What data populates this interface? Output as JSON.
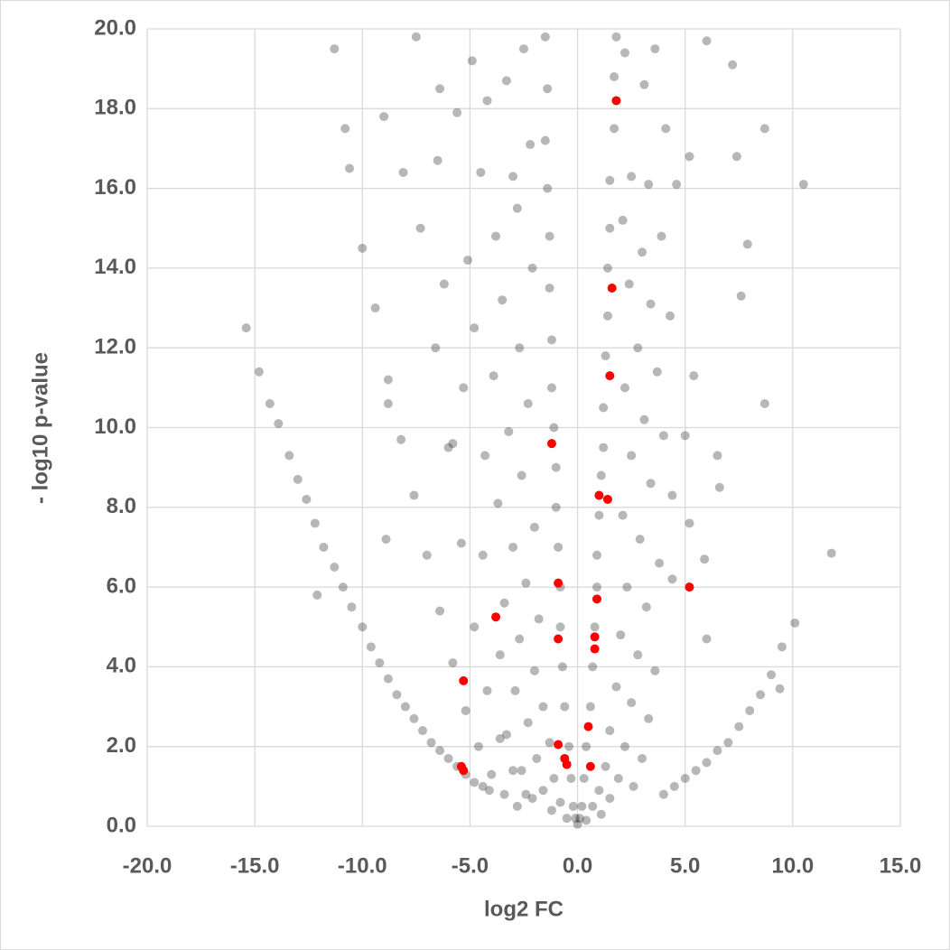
{
  "chart_data": {
    "type": "scatter",
    "xlabel": "log2 FC",
    "ylabel": "- log10 p-value",
    "xlim": [
      -20,
      15
    ],
    "ylim": [
      0,
      20
    ],
    "xticks": [
      {
        "value": -20,
        "label": "-20.0"
      },
      {
        "value": -15,
        "label": "-15.0"
      },
      {
        "value": -10,
        "label": "-10.0"
      },
      {
        "value": -5,
        "label": "-5.0"
      },
      {
        "value": 0,
        "label": "0.0"
      },
      {
        "value": 5,
        "label": "5.0"
      },
      {
        "value": 10,
        "label": "10.0"
      },
      {
        "value": 15,
        "label": "15.0"
      }
    ],
    "yticks": [
      {
        "value": 0,
        "label": "0.0"
      },
      {
        "value": 2,
        "label": "2.0"
      },
      {
        "value": 4,
        "label": "4.0"
      },
      {
        "value": 6,
        "label": "6.0"
      },
      {
        "value": 8,
        "label": "8.0"
      },
      {
        "value": 10,
        "label": "10.0"
      },
      {
        "value": 12,
        "label": "12.0"
      },
      {
        "value": 14,
        "label": "14.0"
      },
      {
        "value": 16,
        "label": "16.0"
      },
      {
        "value": 18,
        "label": "18.0"
      },
      {
        "value": 20,
        "label": "20.0"
      }
    ],
    "grid": true,
    "series": [
      {
        "color": "rgba(30,30,30,0.32)",
        "x": [
          -15.4,
          -14.8,
          -14.3,
          -13.9,
          -13.4,
          -13,
          -12.6,
          -12.2,
          -11.8,
          -11.3,
          -10.9,
          -10.5,
          -10,
          -9.6,
          -9.2,
          -8.8,
          -8.4,
          -8,
          -7.6,
          -7.2,
          -6.8,
          -6.4,
          -6,
          -5.6,
          -5.2,
          -4.8,
          -4.4,
          -4.1,
          -10.6,
          -10,
          -9.4,
          -8.8,
          -8.2,
          -7.6,
          -7,
          -6.4,
          -5.8,
          -5.2,
          -4.6,
          -4,
          -3.4,
          -2.8,
          -7.3,
          -6.6,
          -6,
          -5.4,
          -4.8,
          -4.2,
          -3.6,
          -3,
          -2.4,
          4,
          4.5,
          5,
          5.5,
          6,
          6.5,
          7,
          7.5,
          8,
          8.5,
          9,
          9.5,
          10.1,
          11.8,
          9.4,
          8.7,
          10.5,
          8.7,
          7.4,
          7.9,
          7.6,
          7.2,
          6,
          6.5,
          6.6,
          5.9,
          6,
          -1.5,
          -1.4,
          -1.5,
          -1.4,
          -1.3,
          -1.3,
          -1.2,
          -1.2,
          -1.1,
          -1,
          -1,
          -0.9,
          -0.8,
          -0.8,
          -0.7,
          -0.6,
          -0.4,
          -0.3,
          -0.2,
          -0.1,
          1.8,
          1.7,
          1.7,
          1.5,
          1.5,
          1.4,
          1.4,
          1.3,
          1.2,
          1.2,
          1.1,
          1,
          0.9,
          0.9,
          0.8,
          0.7,
          0.6,
          0.4,
          0.3,
          0.2,
          0.1,
          0,
          -2.5,
          -3.3,
          -4.2,
          -5.6,
          -2.2,
          -3,
          -4.5,
          -6.5,
          -2.8,
          -3.8,
          -5.1,
          -6.2,
          -2.1,
          -3.5,
          -4.8,
          -2.7,
          -3.9,
          -5.3,
          -2.3,
          -3.2,
          -4.3,
          -5.8,
          -2.6,
          -3.7,
          -2,
          -3,
          -4.4,
          -2.4,
          -3.4,
          -1.8,
          -2.7,
          -3.6,
          -2,
          -2.9,
          -1.6,
          -2.3,
          -3.3,
          -1.3,
          -1.9,
          -2.6,
          -1.1,
          -1.6,
          -2.1,
          -0.8,
          -1.2,
          -0.5,
          -9,
          -11.3,
          -10.8,
          -7.5,
          -8.1,
          -8.8,
          -8.9,
          -6.4,
          -4.9,
          -12.1,
          2.2,
          3.1,
          3.6,
          4.1,
          2.5,
          3.3,
          4.6,
          2.1,
          3,
          3.9,
          2.4,
          3.4,
          4.3,
          2.8,
          3.7,
          2.2,
          3.1,
          4,
          2.5,
          3.4,
          4.4,
          2.1,
          2.9,
          3.8,
          4.4,
          2.3,
          3.2,
          2,
          2.8,
          3.6,
          1.8,
          2.5,
          3.3,
          1.5,
          2.2,
          3,
          1.3,
          1.9,
          2.6,
          1,
          1.5,
          0.7,
          1.1,
          0.4,
          5.2,
          5.4,
          5.2,
          5
        ],
        "y": [
          12.5,
          11.4,
          10.6,
          10.1,
          9.3,
          8.7,
          8.2,
          7.6,
          7,
          6.5,
          6,
          5.5,
          5,
          4.5,
          4.1,
          3.7,
          3.3,
          3,
          2.7,
          2.4,
          2.1,
          1.9,
          1.7,
          1.5,
          1.3,
          1.1,
          1,
          0.9,
          16.5,
          14.5,
          13,
          11.2,
          9.7,
          8.3,
          6.8,
          5.4,
          4.1,
          2.9,
          2,
          1.3,
          0.8,
          0.5,
          15,
          12,
          9.5,
          7.1,
          5,
          3.4,
          2.2,
          1.4,
          0.8,
          0.8,
          1,
          1.2,
          1.4,
          1.6,
          1.9,
          2.1,
          2.5,
          2.9,
          3.3,
          3.8,
          4.5,
          5.1,
          6.85,
          3.45,
          10.6,
          16.1,
          17.5,
          16.8,
          14.6,
          13.3,
          19.1,
          19.7,
          9.3,
          8.5,
          6.7,
          4.7,
          19.8,
          18.5,
          17.2,
          16,
          14.8,
          13.5,
          12.2,
          11,
          10,
          9,
          8,
          7,
          6,
          5,
          4,
          3,
          2,
          1.2,
          0.5,
          0.2,
          19.8,
          18.8,
          17.5,
          16.2,
          15,
          14,
          12.8,
          11.8,
          10.5,
          9.5,
          8.8,
          7.8,
          6.8,
          6,
          5,
          4,
          3,
          2,
          1.2,
          0.5,
          0.2,
          0.05,
          19.5,
          18.7,
          18.2,
          17.9,
          17.1,
          16.3,
          16.4,
          16.7,
          15.5,
          14.8,
          14.2,
          13.6,
          14,
          13.2,
          12.5,
          12,
          11.3,
          11,
          10.6,
          9.9,
          9.3,
          9.6,
          8.8,
          8.1,
          7.5,
          7,
          6.8,
          6.1,
          5.6,
          5.2,
          4.7,
          4.3,
          3.9,
          3.4,
          3,
          2.6,
          2.3,
          2.1,
          1.7,
          1.4,
          1.2,
          0.9,
          0.7,
          0.6,
          0.4,
          0.2,
          17.8,
          19.5,
          17.5,
          19.8,
          16.4,
          10.6,
          7.2,
          18.5,
          19.2,
          5.8,
          19.4,
          18.6,
          19.5,
          17.5,
          16.3,
          16.1,
          16.1,
          15.2,
          14.4,
          14.8,
          13.6,
          13.1,
          12.8,
          12,
          11.4,
          11,
          10.2,
          9.8,
          9.3,
          8.6,
          8.3,
          7.8,
          7.2,
          6.6,
          6.2,
          6,
          5.5,
          4.8,
          4.3,
          3.9,
          3.5,
          3.1,
          2.7,
          2.4,
          2,
          1.7,
          1.5,
          1.2,
          1,
          0.9,
          0.7,
          0.5,
          0.3,
          0.15,
          16.8,
          11.3,
          7.6,
          9.8
        ]
      },
      {
        "color": "#ff0000",
        "x": [
          1.8,
          1.6,
          1.5,
          -1.2,
          1,
          1.4,
          -0.9,
          0.9,
          5.2,
          -3.8,
          -0.9,
          0.8,
          0.8,
          -5.3,
          0.5,
          -0.9,
          -0.6,
          -0.5,
          0.6,
          -5.4,
          -5.3
        ],
        "y": [
          18.2,
          13.5,
          11.3,
          9.6,
          8.3,
          8.2,
          6.1,
          5.7,
          6,
          5.25,
          4.7,
          4.75,
          4.45,
          3.65,
          2.5,
          2.05,
          1.7,
          1.55,
          1.5,
          1.5,
          1.4
        ]
      }
    ]
  }
}
